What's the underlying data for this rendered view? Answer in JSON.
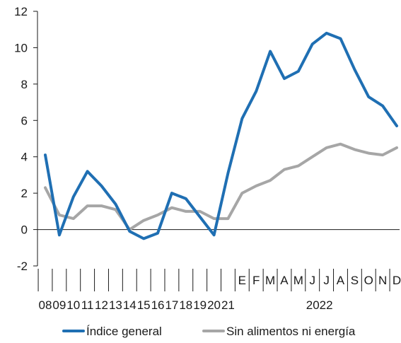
{
  "chart_data": {
    "type": "line",
    "title": "",
    "xlabel": "",
    "ylabel": "",
    "ylim": [
      -2,
      12
    ],
    "yticks": [
      "-2",
      "0",
      "2",
      "4",
      "6",
      "8",
      "10",
      "12"
    ],
    "grid": false,
    "legend_position": "bottom",
    "categories": [
      "08",
      "09",
      "10",
      "11",
      "12",
      "13",
      "14",
      "15",
      "16",
      "17",
      "18",
      "19",
      "20",
      "21",
      "E",
      "F",
      "M",
      "A",
      "M",
      "J",
      "J",
      "A",
      "S",
      "O",
      "N",
      "D"
    ],
    "year_group": {
      "label": "2022",
      "from": "E",
      "to": "D"
    },
    "series": [
      {
        "name": "Índice general",
        "color": "#1f6fb3",
        "values": [
          4.1,
          -0.3,
          1.8,
          3.2,
          2.4,
          1.4,
          -0.1,
          -0.5,
          -0.2,
          2.0,
          1.7,
          0.7,
          -0.3,
          3.1,
          6.1,
          7.6,
          9.8,
          8.3,
          8.7,
          10.2,
          10.8,
          10.5,
          8.8,
          7.3,
          6.8,
          5.7
        ]
      },
      {
        "name": "Sin alimentos ni energía",
        "color": "#a6a6a6",
        "values": [
          2.3,
          0.8,
          0.6,
          1.3,
          1.3,
          1.1,
          0.0,
          0.5,
          0.8,
          1.2,
          1.0,
          1.0,
          0.6,
          0.6,
          2.0,
          2.4,
          2.7,
          3.3,
          3.5,
          4.0,
          4.5,
          4.7,
          4.4,
          4.2,
          4.1,
          4.5
        ]
      }
    ]
  }
}
